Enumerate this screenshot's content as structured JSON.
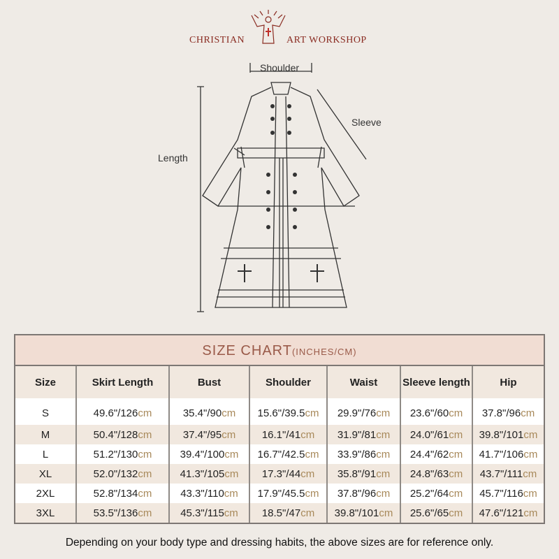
{
  "brand": {
    "left": "CHRISTIAN",
    "right": "ART WORKSHOP"
  },
  "diagram": {
    "shoulder": "Shoulder",
    "sleeve": "Sleeve",
    "length": "Length"
  },
  "table": {
    "title": "SIZE CHART",
    "title_units": "(INCHES/CM)",
    "headers": [
      "Size",
      "Skirt Length",
      "Bust",
      "Shoulder",
      "Waist",
      "Sleeve length",
      "Hip"
    ],
    "rows": [
      [
        "S",
        "49.6\"/126",
        "35.4\"/90",
        "15.6\"/39.5",
        "29.9\"/76",
        "23.6\"/60",
        "37.8\"/96"
      ],
      [
        "M",
        "50.4\"/128",
        "37.4\"/95",
        "16.1\"/41",
        "31.9\"/81",
        "24.0\"/61",
        "39.8\"/101"
      ],
      [
        "L",
        "51.2\"/130",
        "39.4\"/100",
        "16.7\"/42.5",
        "33.9\"/86",
        "24.4\"/62",
        "41.7\"/106"
      ],
      [
        "XL",
        "52.0\"/132",
        "41.3\"/105",
        "17.3\"/44",
        "35.8\"/91",
        "24.8\"/63",
        "43.7\"/111"
      ],
      [
        "2XL",
        "52.8\"/134",
        "43.3\"/110",
        "17.9\"/45.5",
        "37.8\"/96",
        "25.2\"/64",
        "45.7\"/116"
      ],
      [
        "3XL",
        "53.5\"/136",
        "45.3\"/115",
        "18.5\"/47",
        "39.8\"/101",
        "25.6\"/65",
        "47.6\"/121"
      ]
    ],
    "unit": "cm"
  },
  "footer": "Depending on your body type and dressing habits, the above sizes are for reference only."
}
